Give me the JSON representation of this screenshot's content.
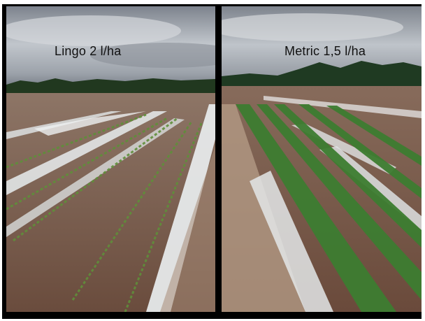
{
  "photos": {
    "left": {
      "label": "Lingo 2 l/ha"
    },
    "right": {
      "label": "Metric 1,5 l/ha"
    }
  },
  "colors": {
    "sky": "#5d6470",
    "cloud": "#b9bec6",
    "tree_line": "#1f3a22",
    "soil": "#8a6a55",
    "soil_dark": "#5a4236",
    "crop": "#3f7a33",
    "plastic_film": "#dfe3e3"
  }
}
